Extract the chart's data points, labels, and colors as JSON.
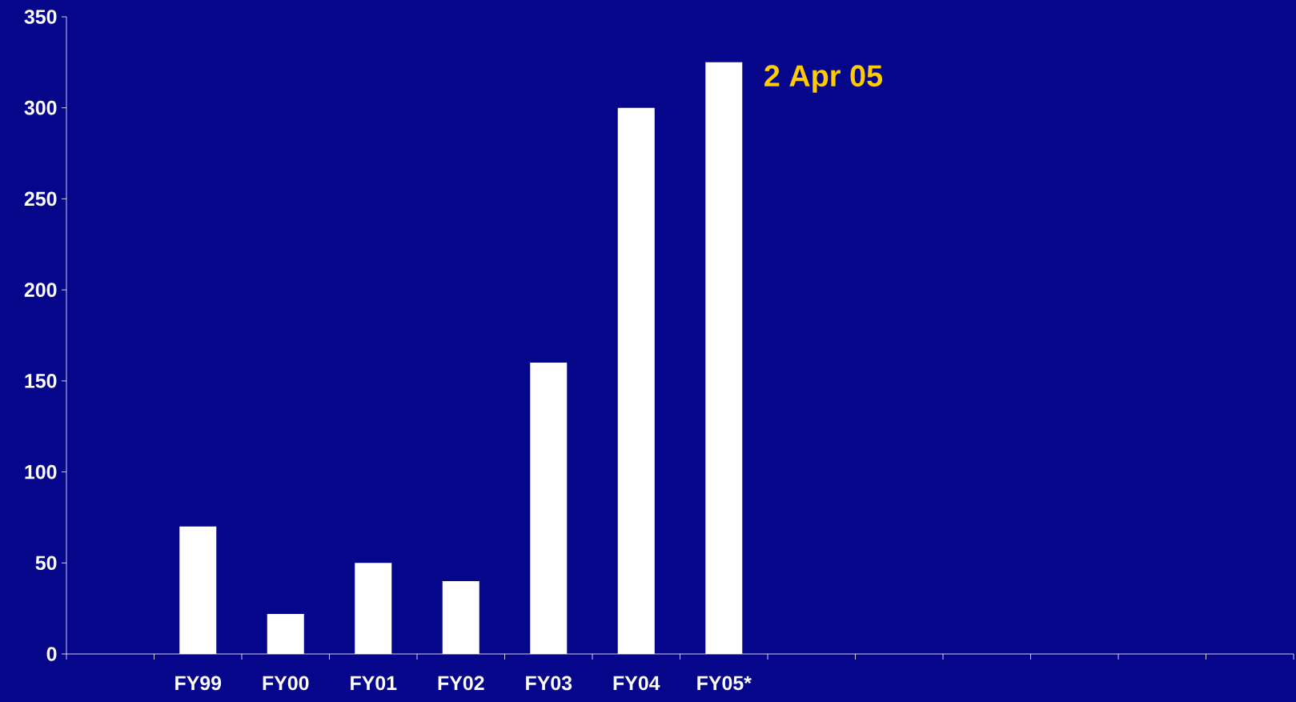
{
  "chart_data": {
    "type": "bar",
    "categories": [
      null,
      "FY99",
      "FY00",
      "FY01",
      "FY02",
      "FY03",
      "FY04",
      "FY05*",
      null,
      null,
      null,
      null,
      null,
      null
    ],
    "values": [
      null,
      70,
      22,
      50,
      40,
      160,
      300,
      325,
      null,
      null,
      null,
      null,
      null,
      null
    ],
    "color": "#ffffff",
    "ylim": [
      0,
      350
    ],
    "yticks": [
      0,
      50,
      100,
      150,
      200,
      250,
      300,
      350
    ],
    "annotations": [
      {
        "text": "2 Apr 05",
        "x": "FY05*",
        "y": 325
      }
    ],
    "grid": false
  }
}
